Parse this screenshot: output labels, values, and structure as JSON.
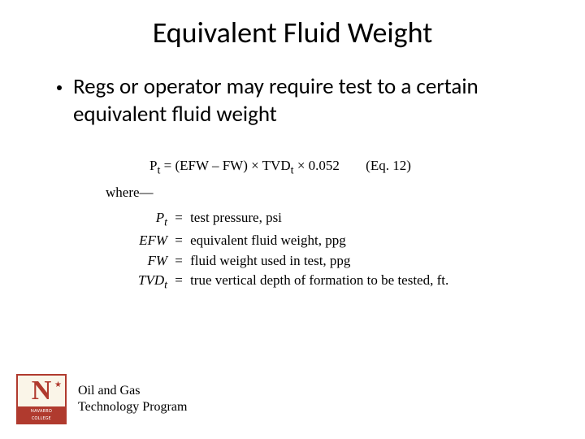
{
  "title": "Equivalent Fluid Weight",
  "bullet": "Regs or operator may require test to a certain equivalent fluid weight",
  "equation": {
    "main_html": "P<sub>t</sub> = (EFW – FW) × TVD<sub>t</sub> × 0.052",
    "label": "(Eq. 12)",
    "where": "where—",
    "defs": [
      {
        "sym_html": "P<sub>t</sub>",
        "eq": "=",
        "desc": "test pressure, psi"
      },
      {
        "sym_html": "EFW",
        "eq": "=",
        "desc": "equivalent fluid weight, ppg"
      },
      {
        "sym_html": "FW",
        "eq": "=",
        "desc": "fluid weight used in test, ppg"
      },
      {
        "sym_html": "TVD<sub>t</sub>",
        "eq": "=",
        "desc": "true vertical depth of formation to be tested, ft."
      }
    ]
  },
  "footer": {
    "logo_letter": "N",
    "logo_band_top": "NAVARRO",
    "logo_band_bottom": "COLLEGE",
    "line1": "Oil and Gas",
    "line2": "Technology Program"
  }
}
